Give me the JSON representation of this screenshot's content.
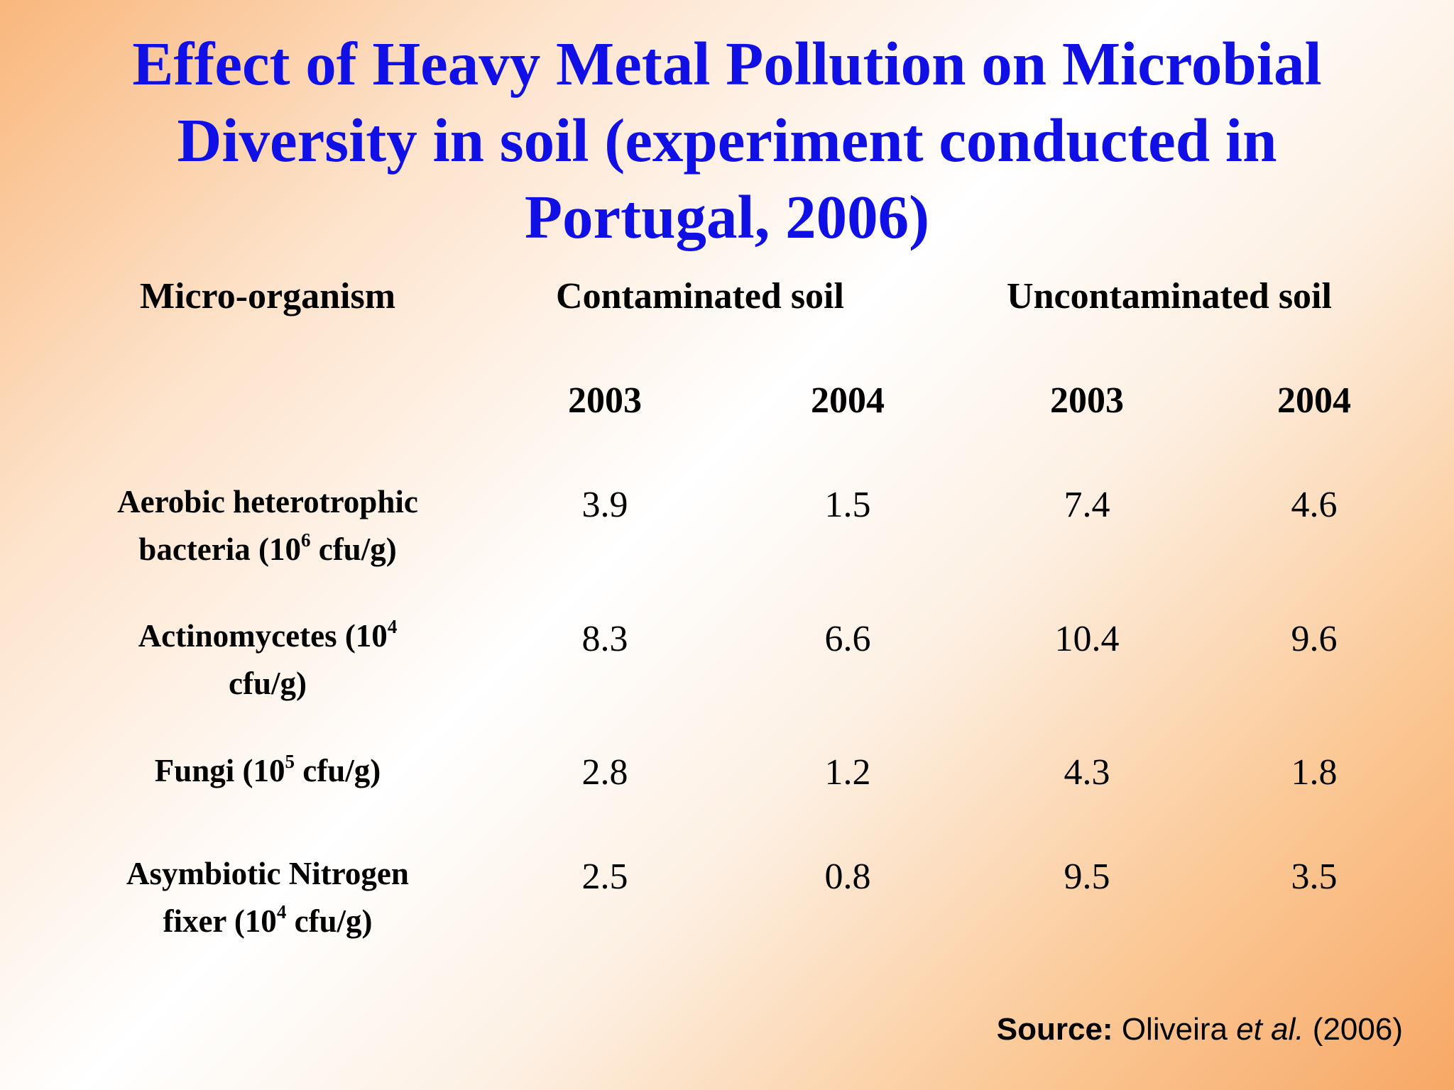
{
  "title": {
    "line1": "Effect of Heavy Metal Pollution on Microbial",
    "line2": "Diversity in soil (experiment conducted in",
    "line3": "Portugal, 2006)"
  },
  "table": {
    "headers": {
      "organism": "Micro-organism",
      "contaminated": "Contaminated soil",
      "uncontaminated": "Uncontaminated soil"
    },
    "years": [
      "2003",
      "2004",
      "2003",
      "2004"
    ],
    "rows": [
      {
        "label_a": "Aerobic heterotrophic",
        "label_b": "bacteria (10",
        "label_sup": "6",
        "label_c": " cfu/g)",
        "values": [
          "3.9",
          "1.5",
          "7.4",
          "4.6"
        ]
      },
      {
        "label_a": "Actinomycetes (10",
        "label_sup": "4",
        "label_b": "cfu/g)",
        "values": [
          "8.3",
          "6.6",
          "10.4",
          "9.6"
        ]
      },
      {
        "label_a": "Fungi (10",
        "label_sup": "5",
        "label_c": " cfu/g)",
        "values": [
          "2.8",
          "1.2",
          "4.3",
          "1.8"
        ]
      },
      {
        "label_a": "Asymbiotic Nitrogen",
        "label_b": "fixer (10",
        "label_sup": "4",
        "label_c": " cfu/g)",
        "values": [
          "2.5",
          "0.8",
          "9.5",
          "3.5"
        ]
      }
    ]
  },
  "source": {
    "label": "Source:",
    "author": " Oliveira ",
    "etal": "et al.",
    "year": " (2006)"
  }
}
